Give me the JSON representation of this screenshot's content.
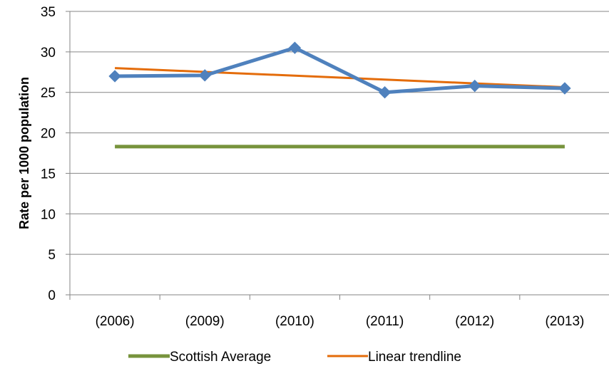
{
  "chart_data": {
    "type": "line",
    "categories": [
      "(2006)",
      "(2009)",
      "(2010)",
      "(2011)",
      "(2012)",
      "(2013)"
    ],
    "series": [
      {
        "values": [
          27.0,
          27.1,
          30.5,
          25.0,
          25.8,
          25.5
        ],
        "color": "#4F81BD",
        "marker": "diamond"
      },
      {
        "name": "Scottish Average",
        "values": [
          18.3,
          18.3,
          18.3,
          18.3,
          18.3,
          18.3
        ],
        "color": "#77933C"
      },
      {
        "name": "Linear trendline",
        "values": [
          28.0,
          27.53,
          27.06,
          26.58,
          26.11,
          25.64
        ],
        "color": "#E46C0A"
      }
    ],
    "ylabel": "Rate per 1000 population",
    "xlabel": "",
    "ylim": [
      0,
      35
    ],
    "yticks": [
      0,
      5,
      10,
      15,
      20,
      25,
      30,
      35
    ],
    "grid": true,
    "legend": {
      "position": "bottom",
      "entries": [
        "Scottish Average",
        "Linear trendline"
      ]
    }
  }
}
